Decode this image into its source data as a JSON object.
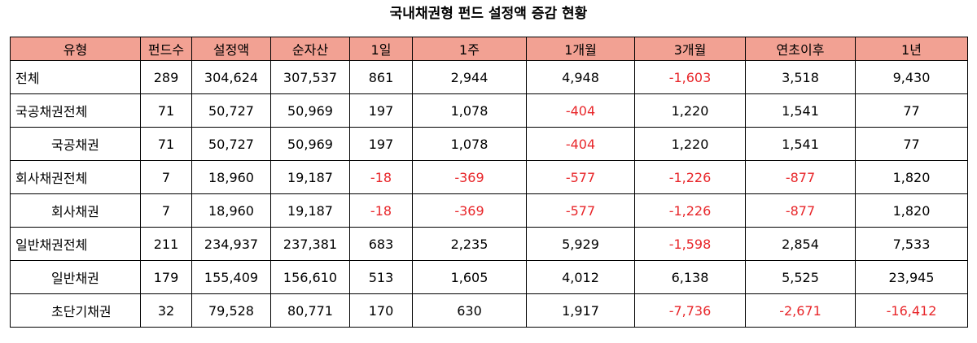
{
  "title": "국내채권형 펀드 설정액 증감 현황",
  "colors": {
    "header_bg": "#f2a193",
    "negative": "#e8262a"
  },
  "table": {
    "headers": [
      "유형",
      "펀드수",
      "설정액",
      "순자산",
      "1일",
      "1주",
      "1개월",
      "3개월",
      "연초이후",
      "1년"
    ],
    "rows": [
      {
        "indent": false,
        "cells": [
          "전체",
          "289",
          "304,624",
          "307,537",
          "861",
          "2,944",
          "4,948",
          "-1,603",
          "3,518",
          "9,430"
        ]
      },
      {
        "indent": false,
        "cells": [
          "국공채권전체",
          "71",
          "50,727",
          "50,969",
          "197",
          "1,078",
          "-404",
          "1,220",
          "1,541",
          "77"
        ]
      },
      {
        "indent": true,
        "cells": [
          "국공채권",
          "71",
          "50,727",
          "50,969",
          "197",
          "1,078",
          "-404",
          "1,220",
          "1,541",
          "77"
        ]
      },
      {
        "indent": false,
        "cells": [
          "회사채권전체",
          "7",
          "18,960",
          "19,187",
          "-18",
          "-369",
          "-577",
          "-1,226",
          "-877",
          "1,820"
        ]
      },
      {
        "indent": true,
        "cells": [
          "회사채권",
          "7",
          "18,960",
          "19,187",
          "-18",
          "-369",
          "-577",
          "-1,226",
          "-877",
          "1,820"
        ]
      },
      {
        "indent": false,
        "cells": [
          "일반채권전체",
          "211",
          "234,937",
          "237,381",
          "683",
          "2,235",
          "5,929",
          "-1,598",
          "2,854",
          "7,533"
        ]
      },
      {
        "indent": true,
        "cells": [
          "일반채권",
          "179",
          "155,409",
          "156,610",
          "513",
          "1,605",
          "4,012",
          "6,138",
          "5,525",
          "23,945"
        ]
      },
      {
        "indent": true,
        "cells": [
          "초단기채권",
          "32",
          "79,528",
          "80,771",
          "170",
          "630",
          "1,917",
          "-7,736",
          "-2,671",
          "-16,412"
        ]
      }
    ]
  }
}
